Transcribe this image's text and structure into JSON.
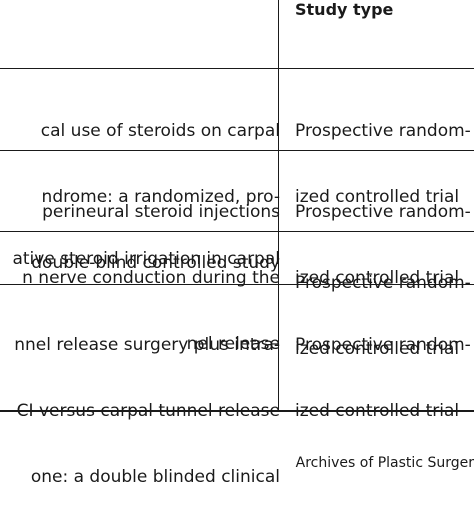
{
  "table": {
    "header": {
      "study_type": "Study type"
    },
    "rows": [
      {
        "title_lines": [
          "cal use of steroids on carpal",
          "ndrome: a randomized, pro-",
          "double-blind controlled study"
        ],
        "study_type_lines": [
          "Prospective random-",
          "ized controlled trial"
        ]
      },
      {
        "title_lines": [
          "perineural steroid injections",
          "n nerve conduction during the",
          "nel release"
        ],
        "study_type_lines": [
          "Prospective random-",
          "ized controlled trial"
        ]
      },
      {
        "title_lines": [
          "ative steroid irrigation in carpal"
        ],
        "study_type_lines": [
          "Prospective random-",
          "ized controlled trial"
        ]
      },
      {
        "title_lines": [
          "nnel release surgery plus intra-",
          "CI versus carpal tunnel release",
          "one: a double blinded clinical"
        ],
        "study_type_lines": [
          "Prospective random-",
          "ized controlled trial"
        ]
      }
    ]
  },
  "footer": {
    "source": "Archives of Plastic Surger"
  }
}
